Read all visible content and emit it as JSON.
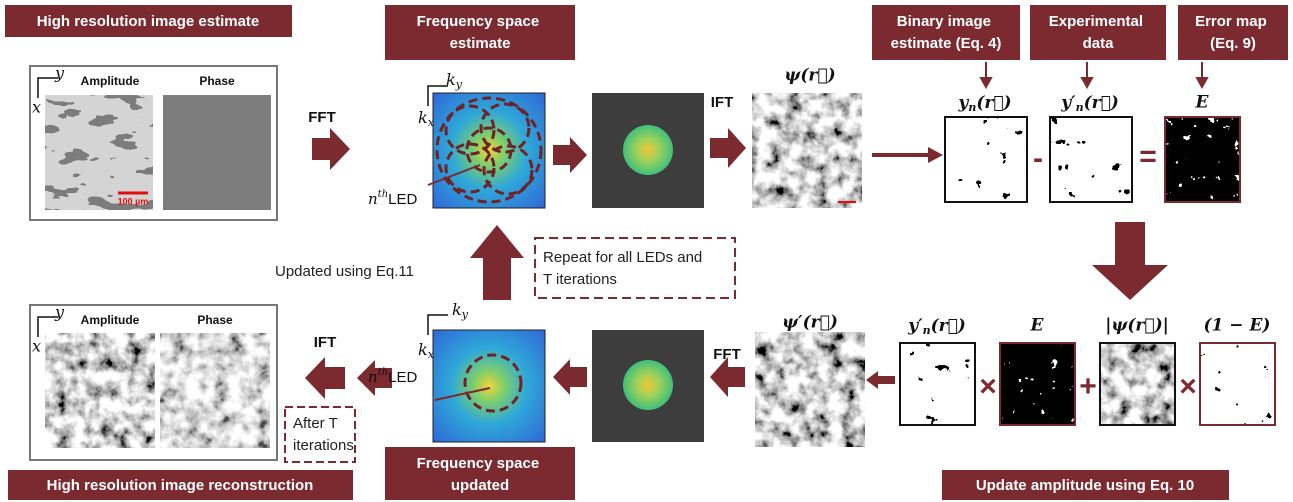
{
  "labels": {
    "top_left": "High resolution image estimate",
    "freq_estimate": [
      "Frequency space",
      "estimate"
    ],
    "binary": [
      "Binary image",
      "estimate (Eq. 4)"
    ],
    "experimental": [
      "Experimental",
      "data"
    ],
    "error_map": [
      "Error map",
      "(Eq. 9)"
    ],
    "bottom_left": "High resolution image reconstruction",
    "freq_updated": [
      "Frequency space",
      "updated"
    ],
    "update_amp": "Update amplitude using Eq. 10"
  },
  "top_panel": {
    "amplitude": "Amplitude",
    "phase": "Phase",
    "scale_bar": "100 µm",
    "axis_y": "y",
    "axis_x": "x"
  },
  "bottom_panel": {
    "amplitude": "Amplitude",
    "phase": "Phase",
    "axis_y": "y",
    "axis_x": "x"
  },
  "steps": {
    "fft_top": "FFT",
    "ift_top": "IFT",
    "fft_bottom": "FFT",
    "ift_bottom": "IFT"
  },
  "spectrum_top": {
    "ky": {
      "base": "k",
      "sub": "y"
    },
    "kx": {
      "base": "k",
      "sub": "x"
    },
    "led": {
      "base": "n",
      "sup": "th",
      "rest": "LED"
    }
  },
  "spectrum_bottom": {
    "ky": {
      "base": "k",
      "sub": "y"
    },
    "kx": {
      "base": "k",
      "sub": "x"
    },
    "led": {
      "base": "n",
      "sup": "th",
      "rest": "LED"
    }
  },
  "math": {
    "psi": "ψ(r⃗)",
    "psi_prime": "ψ′(r⃗)",
    "yn": {
      "base": "y",
      "sub": "n",
      "rest": "(r⃗)"
    },
    "yn_prime_top": {
      "base": "y′",
      "sub": "n",
      "rest": "(r⃗)"
    },
    "yn_prime_bottom": {
      "base": "y′",
      "sub": "n",
      "rest": "(r⃗)"
    },
    "E_top": "E",
    "E_bottom": "E",
    "abs_psi": "|ψ(r⃗)|",
    "one_minus_E": "(1 − E)"
  },
  "operators": {
    "minus": "-",
    "equals": "=",
    "times1": "×",
    "plus": "+",
    "times2": "×"
  },
  "notes": {
    "updated": "Updated using Eq.11",
    "repeat": [
      "Repeat for all LEDs and",
      "T iterations"
    ],
    "after": [
      "After T",
      "iterations"
    ]
  }
}
